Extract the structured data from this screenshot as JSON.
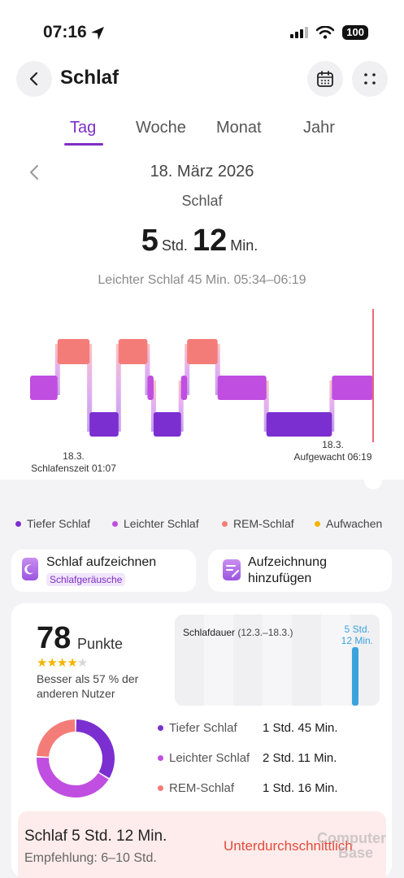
{
  "status_bar": {
    "time": "07:16",
    "battery": "100"
  },
  "header": {
    "title": "Schlaf",
    "back_icon": "chevron-left-icon",
    "calendar_icon": "calendar-icon",
    "more_icon": "more-dots-icon"
  },
  "tabs": [
    {
      "label": "Tag",
      "active": true
    },
    {
      "label": "Woche",
      "active": false
    },
    {
      "label": "Monat",
      "active": false
    },
    {
      "label": "Jahr",
      "active": false
    }
  ],
  "date": "18. März 2026",
  "metric_label": "Schlaf",
  "duration": {
    "hours": "5",
    "hours_unit": "Std.",
    "minutes": "12",
    "minutes_unit": "Min."
  },
  "light_sleep_info": "Leichter Schlaf 45 Min. 05:34–06:19",
  "chart_data": {
    "type": "sleep-stages",
    "stages": [
      "REM-Schlaf",
      "Leichter Schlaf",
      "Tiefer Schlaf"
    ],
    "segments": [
      {
        "stage": "Leichter Schlaf",
        "start": "01:07",
        "end": "01:25"
      },
      {
        "stage": "REM-Schlaf",
        "start": "01:25",
        "end": "01:46"
      },
      {
        "stage": "Tiefer Schlaf",
        "start": "01:46",
        "end": "02:05"
      },
      {
        "stage": "REM-Schlaf",
        "start": "02:05",
        "end": "02:24"
      },
      {
        "stage": "Leichter Schlaf",
        "start": "02:24",
        "end": "02:28"
      },
      {
        "stage": "Tiefer Schlaf",
        "start": "02:28",
        "end": "02:46"
      },
      {
        "stage": "Leichter Schlaf",
        "start": "02:46",
        "end": "02:50"
      },
      {
        "stage": "REM-Schlaf",
        "start": "02:50",
        "end": "03:10"
      },
      {
        "stage": "Leichter Schlaf",
        "start": "03:10",
        "end": "03:42"
      },
      {
        "stage": "Tiefer Schlaf",
        "start": "03:42",
        "end": "04:25"
      },
      {
        "stage": "Leichter Schlaf",
        "start": "04:25",
        "end": "04:52"
      }
    ],
    "start_label": {
      "date": "18.3.",
      "text": "Schlafenszeit 01:07"
    },
    "end_label": {
      "date": "18.3.",
      "text": "Aufgewacht 06:19"
    }
  },
  "legend": [
    {
      "label": "Tiefer Schlaf",
      "color": "#7b2fd0"
    },
    {
      "label": "Leichter Schlaf",
      "color": "#c04ee0"
    },
    {
      "label": "REM-Schlaf",
      "color": "#f47c78"
    },
    {
      "label": "Aufwachen",
      "color": "#f5b400"
    }
  ],
  "actions": {
    "record": {
      "title": "Schlaf aufzeichnen",
      "badge": "Schlafgeräusche"
    },
    "add": {
      "title": "Aufzeichnung hinzufügen"
    }
  },
  "score": {
    "value": "78",
    "unit": "Punkte",
    "stars": 4,
    "stars_max": 5,
    "comparison": "Besser als 57 % der anderen Nutzer"
  },
  "mini_chart": {
    "title": "Schlafdauer",
    "range": "(12.3.–18.3.)",
    "value_line1": "5 Std.",
    "value_line2": "12 Min.",
    "bar_color": "#3aa3dd"
  },
  "breakdown": [
    {
      "name": "Tiefer Schlaf",
      "value": "1 Std. 45 Min.",
      "color": "#7b2fd0"
    },
    {
      "name": "Leichter Schlaf",
      "value": "2 Std. 11 Min.",
      "color": "#c04ee0"
    },
    {
      "name": "REM-Schlaf",
      "value": "1 Std. 16 Min.",
      "color": "#f47c78"
    }
  ],
  "donut": [
    {
      "name": "Tiefer Schlaf",
      "fraction": 0.337
    },
    {
      "name": "Leichter Schlaf",
      "fraction": 0.42
    },
    {
      "name": "REM-Schlaf",
      "fraction": 0.243
    }
  ],
  "summary": {
    "title": "Schlaf 5 Std. 12 Min.",
    "recommendation": "Empfehlung: 6–10 Std.",
    "status": "Unterdurchschnittlich",
    "status_color": "#e24b3b"
  },
  "watermark": {
    "line1": "Computer",
    "line2": "Base"
  }
}
